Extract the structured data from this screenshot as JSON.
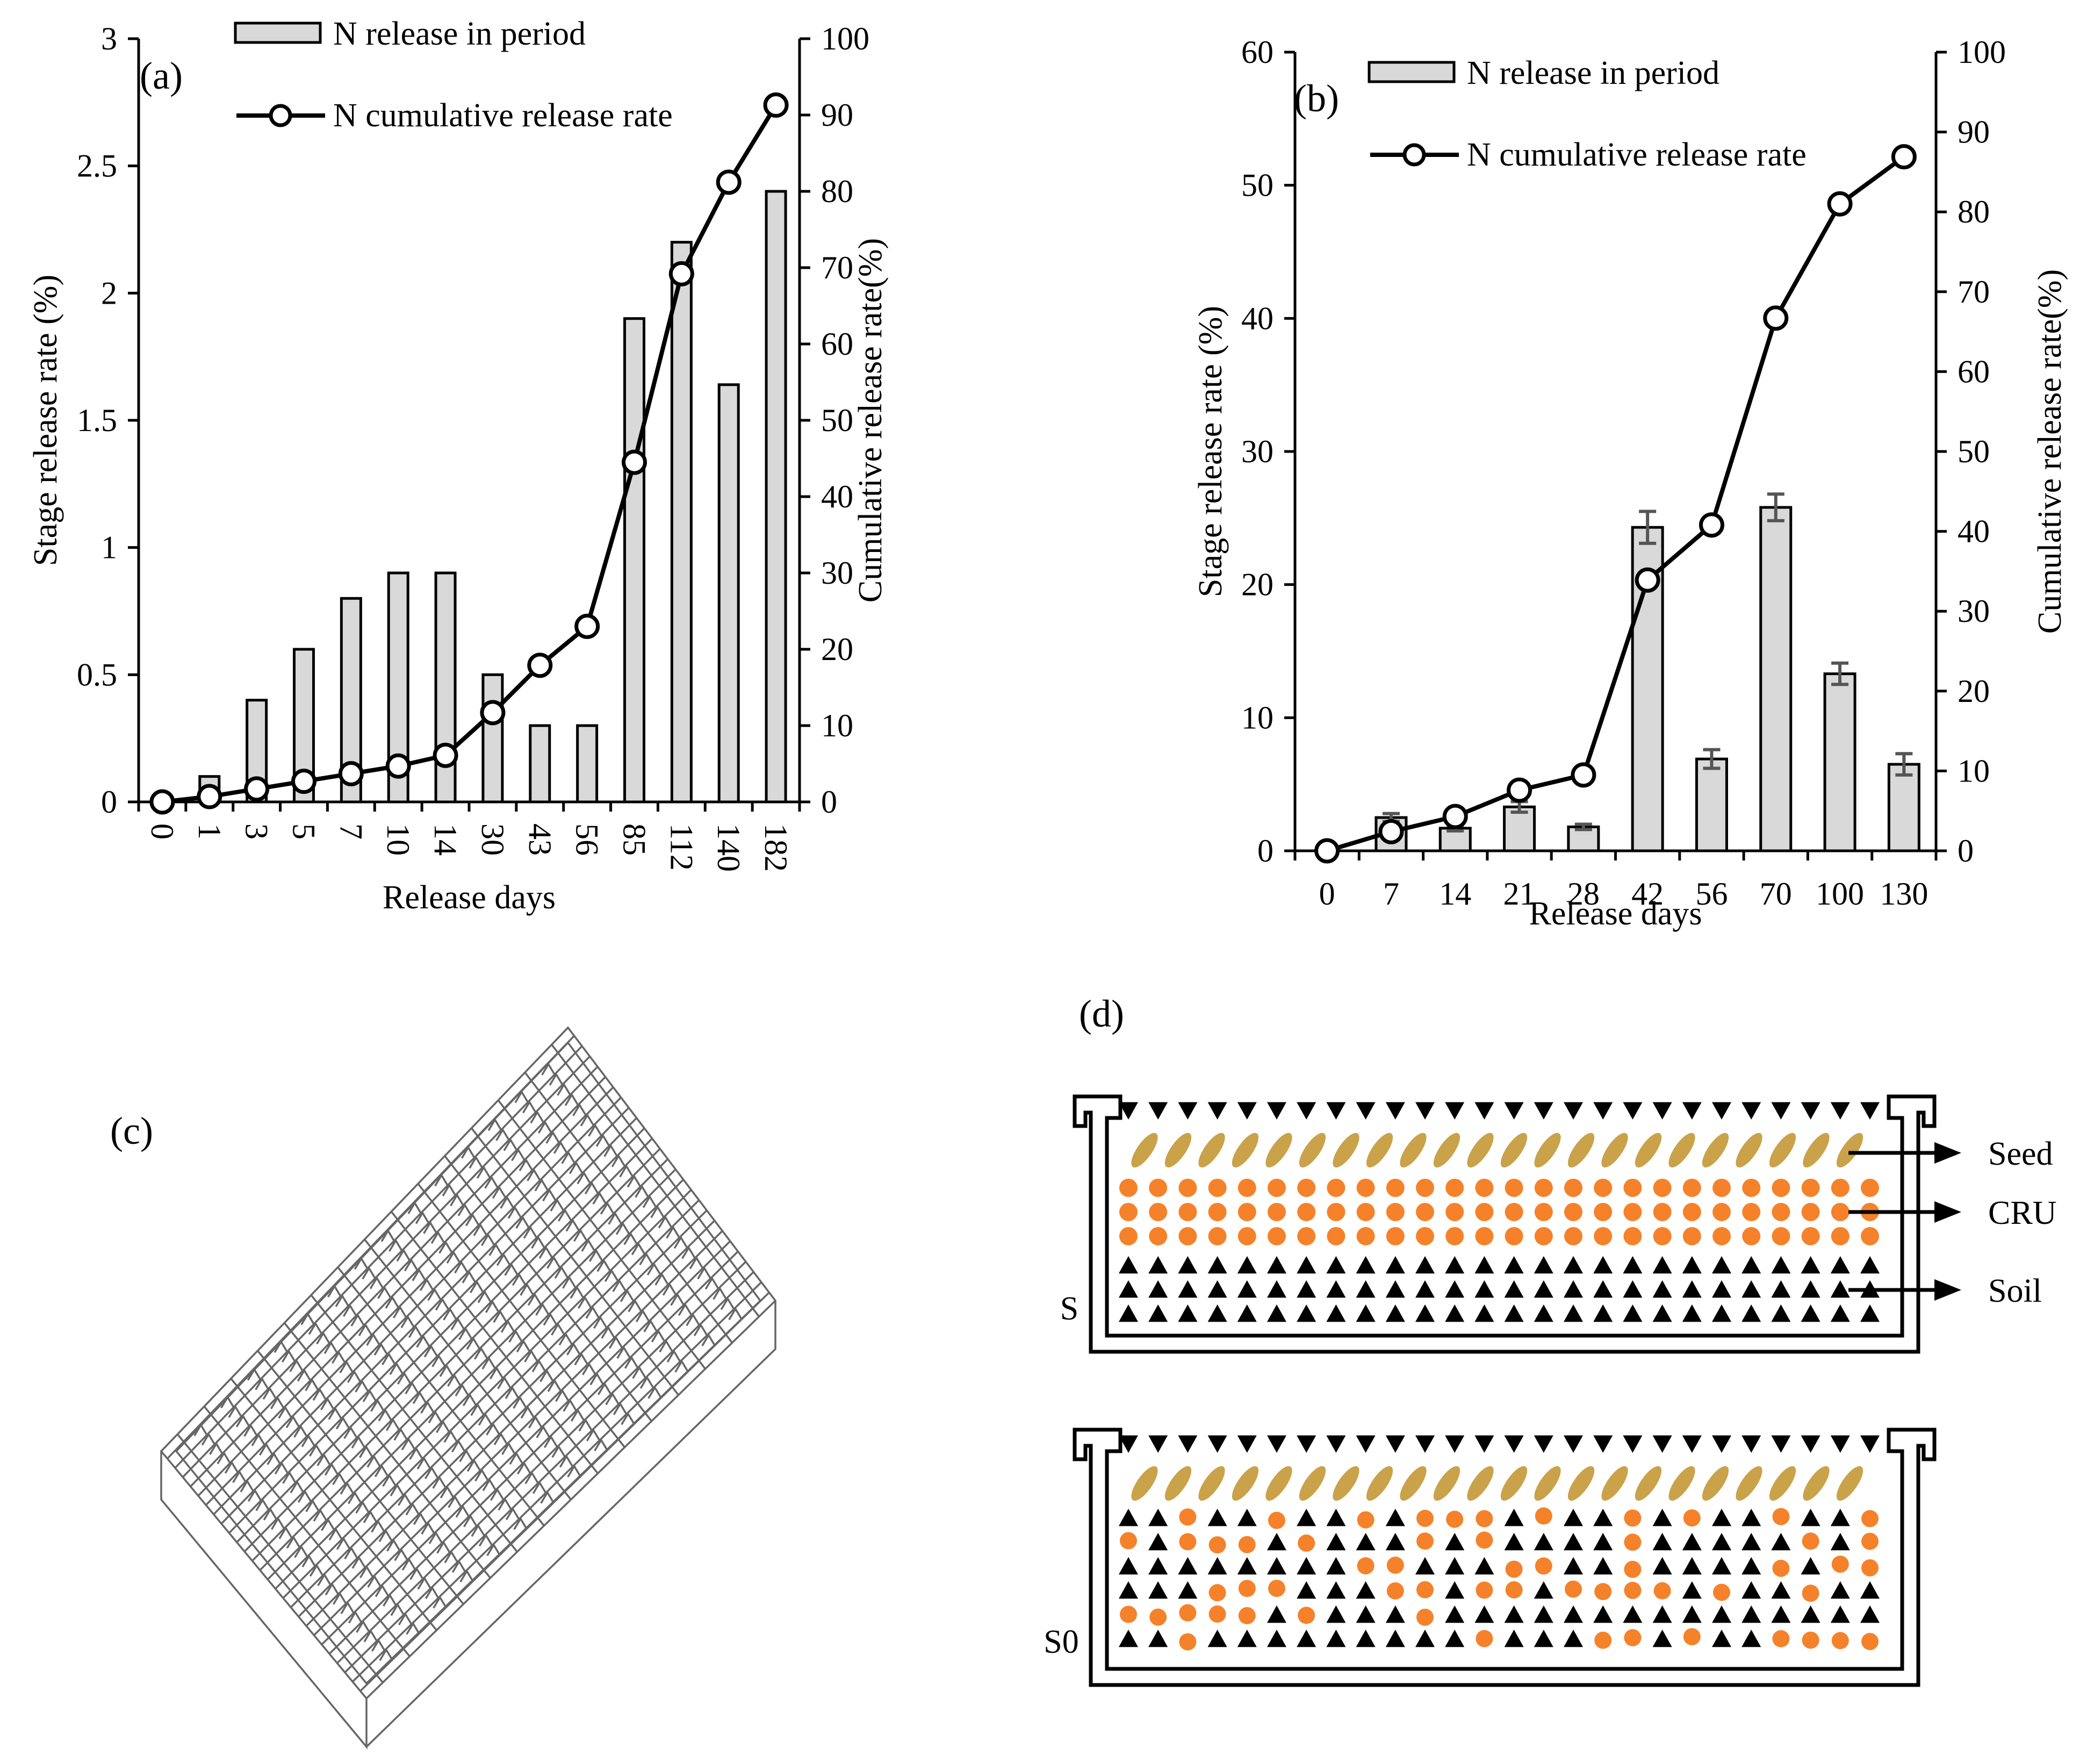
{
  "chart_data": [
    {
      "id": "a",
      "type": "bar",
      "panel_label": "(a)",
      "categories": [
        "0",
        "1",
        "3",
        "5",
        "7",
        "10",
        "14",
        "30",
        "43",
        "56",
        "85",
        "112",
        "140",
        "182"
      ],
      "series": [
        {
          "name": "N release in period",
          "type": "bar",
          "axis": "left",
          "values": [
            0,
            0.1,
            0.4,
            0.6,
            0.8,
            0.9,
            0.9,
            0.5,
            0.3,
            0.3,
            1.9,
            2.2,
            1.64,
            2.4
          ]
        },
        {
          "name": "N cumulative release rate",
          "type": "line",
          "axis": "right",
          "values": [
            0,
            0.7,
            1.7,
            2.7,
            3.7,
            4.7,
            6.1,
            11.7,
            17.9,
            23.0,
            44.5,
            69.2,
            81.2,
            91.3
          ]
        }
      ],
      "xlabel": "Release days",
      "ylabel": "Stage release rate (%)",
      "y2label": "Cumulative release rate(%)",
      "ylim": [
        0,
        3
      ],
      "yticks": [
        "0",
        "0.5",
        "1",
        "1.5",
        "2",
        "2.5",
        "3"
      ],
      "y2lim": [
        0,
        100
      ],
      "y2ticks": [
        "0",
        "10",
        "20",
        "30",
        "40",
        "50",
        "60",
        "70",
        "80",
        "90",
        "100"
      ],
      "legend_position": "top-center"
    },
    {
      "id": "b",
      "type": "bar",
      "panel_label": "(b)",
      "categories": [
        "0",
        "7",
        "14",
        "21",
        "28",
        "42",
        "56",
        "70",
        "100",
        "130"
      ],
      "series": [
        {
          "name": "N release in period",
          "type": "bar",
          "axis": "left",
          "values": [
            0,
            2.5,
            1.7,
            3.3,
            1.8,
            24.3,
            6.9,
            25.8,
            13.3,
            6.5
          ],
          "errors": [
            0,
            0.3,
            0.2,
            0.4,
            0.2,
            1.2,
            0.7,
            1.0,
            0.8,
            0.8
          ]
        },
        {
          "name": "N cumulative release rate",
          "type": "line",
          "axis": "right",
          "values": [
            0,
            2.4,
            4.3,
            7.6,
            9.5,
            33.9,
            40.8,
            66.7,
            81.0,
            86.9
          ]
        }
      ],
      "xlabel": "Release days",
      "ylabel": "Stage release rate (%)",
      "y2label": "Cumulative release rate(%)",
      "ylim": [
        0,
        60
      ],
      "yticks": [
        "0",
        "10",
        "20",
        "30",
        "40",
        "50",
        "60"
      ],
      "y2lim": [
        0,
        100
      ],
      "y2ticks": [
        "0",
        "10",
        "20",
        "30",
        "40",
        "50",
        "60",
        "70",
        "80",
        "90",
        "100"
      ],
      "legend_position": "top-left"
    }
  ],
  "panel_c": {
    "label": "(c)"
  },
  "panel_d": {
    "label": "(d)",
    "container_labels": [
      "S",
      "S0"
    ],
    "layer_labels": [
      "Seed",
      "CRU",
      "Soil"
    ],
    "colors": {
      "cru": "#f5822a",
      "seed": "#c9a24a",
      "soil": "#000000"
    }
  }
}
